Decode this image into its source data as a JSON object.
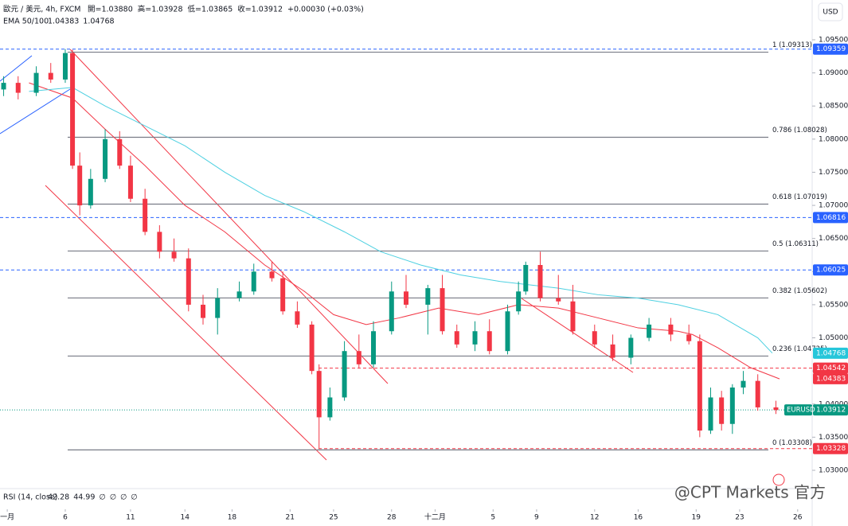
{
  "header": {
    "title": "歐元 / 美元, 4h, FXCM",
    "ohlc": [
      "開=1.03880",
      "高=1.03928",
      "低=1.03865",
      "收=1.03912",
      "+0.00030 (+0.03%)"
    ],
    "currency": "USD",
    "rsi": {
      "label": "RSI (14, close)",
      "values": [
        "42.28",
        "44.99",
        "∅",
        "∅",
        "∅",
        "∅"
      ]
    },
    "watermark": "@CPT Markets 官方"
  },
  "chart_data": {
    "type": "candlestick",
    "symbol": "EURUSD",
    "xlim": [
      0,
      224
    ],
    "xticks": [
      {
        "value": 2,
        "label": "一月"
      },
      {
        "value": 18,
        "label": "6"
      },
      {
        "value": 36,
        "label": "11"
      },
      {
        "value": 51,
        "label": "14"
      },
      {
        "value": 64,
        "label": "18"
      },
      {
        "value": 80,
        "label": "21"
      },
      {
        "value": 92,
        "label": "25"
      },
      {
        "value": 108,
        "label": "28"
      },
      {
        "value": 120,
        "label": "十二月"
      },
      {
        "value": 136,
        "label": "5"
      },
      {
        "value": 148,
        "label": "9"
      },
      {
        "value": 164,
        "label": "12"
      },
      {
        "value": 176,
        "label": "16"
      },
      {
        "value": 192,
        "label": "19"
      },
      {
        "value": 204,
        "label": "23"
      },
      {
        "value": 220,
        "label": "26"
      }
    ],
    "ylim": [
      1.03,
      1.095
    ],
    "yticks": [
      {
        "value": 1.095,
        "label": "1.09500"
      },
      {
        "value": 1.09,
        "label": "1.09000"
      },
      {
        "value": 1.085,
        "label": "1.08500"
      },
      {
        "value": 1.08,
        "label": "1.08000"
      },
      {
        "value": 1.075,
        "label": "1.07500"
      },
      {
        "value": 1.07,
        "label": "1.07000"
      },
      {
        "value": 1.065,
        "label": "1.06500"
      },
      {
        "value": 1.06,
        "label": "1.06000"
      },
      {
        "value": 1.055,
        "label": "1.05500"
      },
      {
        "value": 1.05,
        "label": "1.05000"
      },
      {
        "value": 1.045,
        "label": "1.04500"
      },
      {
        "value": 1.04,
        "label": "1.04000"
      },
      {
        "value": 1.035,
        "label": "1.03500"
      },
      {
        "value": 1.03,
        "label": "1.03000"
      }
    ],
    "up_color": "#089981",
    "down_color": "#f23645",
    "x": [
      1,
      5,
      10,
      14,
      18,
      20,
      22,
      25,
      29,
      33,
      36,
      40,
      44,
      48,
      52,
      56,
      60,
      66,
      70,
      75,
      78,
      82,
      86,
      88,
      91,
      95,
      99,
      103,
      108,
      112,
      118,
      122,
      126,
      131,
      135,
      140,
      143,
      145,
      149,
      154,
      158,
      164,
      169,
      174,
      179,
      185,
      190,
      193,
      196,
      199,
      202,
      205,
      209,
      214
    ],
    "open": [
      1.0875,
      1.0885,
      1.087,
      1.09,
      1.089,
      1.093,
      1.076,
      1.07,
      1.074,
      1.08,
      1.076,
      1.071,
      1.066,
      1.063,
      1.062,
      1.055,
      1.053,
      1.056,
      1.057,
      1.06,
      1.059,
      1.054,
      1.052,
      1.045,
      1.038,
      1.041,
      1.048,
      1.046,
      1.051,
      1.057,
      1.055,
      1.0575,
      1.051,
      1.049,
      1.051,
      1.048,
      1.054,
      1.057,
      1.061,
      1.056,
      1.0555,
      1.051,
      1.049,
      1.047,
      1.05,
      1.052,
      1.0505,
      1.0495,
      1.036,
      1.041,
      1.037,
      1.0425,
      1.0435,
      1.0395
    ],
    "high": [
      1.0895,
      1.0895,
      1.091,
      1.0915,
      1.0936,
      1.0935,
      1.078,
      1.0755,
      1.0815,
      1.0812,
      1.0775,
      1.0725,
      1.067,
      1.065,
      1.0635,
      1.0565,
      1.0575,
      1.0585,
      1.0612,
      1.0615,
      1.06,
      1.0555,
      1.0525,
      1.046,
      1.0425,
      1.0495,
      1.0505,
      1.0525,
      1.0585,
      1.0595,
      1.058,
      1.0595,
      1.052,
      1.0525,
      1.0528,
      1.055,
      1.0585,
      1.0615,
      1.063,
      1.0595,
      1.058,
      1.052,
      1.0505,
      1.0505,
      1.053,
      1.053,
      1.052,
      1.0505,
      1.0425,
      1.042,
      1.043,
      1.045,
      1.0445,
      1.0405
    ],
    "low": [
      1.0865,
      1.086,
      1.0865,
      1.0885,
      1.0885,
      1.0755,
      1.0685,
      1.0695,
      1.0735,
      1.0755,
      1.0705,
      1.0655,
      1.062,
      1.0615,
      1.054,
      1.052,
      1.0505,
      1.0555,
      1.0565,
      1.0585,
      1.0535,
      1.0515,
      1.0445,
      1.0333,
      1.0375,
      1.0405,
      1.0455,
      1.0455,
      1.0505,
      1.0545,
      1.0505,
      1.0505,
      1.0485,
      1.048,
      1.0475,
      1.0475,
      1.0535,
      1.0565,
      1.0555,
      1.055,
      1.0505,
      1.0485,
      1.0465,
      1.046,
      1.0495,
      1.0495,
      1.049,
      1.035,
      1.0355,
      1.036,
      1.0355,
      1.0415,
      1.039,
      1.0385
    ],
    "close": [
      1.0885,
      1.087,
      1.09,
      1.089,
      1.093,
      1.076,
      1.07,
      1.074,
      1.08,
      1.076,
      1.071,
      1.066,
      1.063,
      1.062,
      1.055,
      1.053,
      1.056,
      1.057,
      1.06,
      1.059,
      1.054,
      1.052,
      1.045,
      1.038,
      1.041,
      1.048,
      1.046,
      1.051,
      1.057,
      1.055,
      1.0575,
      1.051,
      1.049,
      1.051,
      1.048,
      1.054,
      1.057,
      1.061,
      1.056,
      1.0555,
      1.051,
      1.049,
      1.047,
      1.05,
      1.052,
      1.0505,
      1.0495,
      1.036,
      1.041,
      1.037,
      1.0425,
      1.0435,
      1.0395,
      1.0391
    ],
    "ema": {
      "label": "EMA 50/100",
      "series": [
        {
          "name": "EMA 50",
          "color": "#f23645",
          "last_label": "1.04383",
          "x": [
            8,
            20,
            29,
            40,
            51,
            62,
            73,
            84,
            92,
            101,
            110,
            121,
            132,
            143,
            154,
            165,
            176,
            187,
            191,
            198,
            207,
            215
          ],
          "values": [
            1.0885,
            1.0862,
            1.0815,
            1.076,
            1.07,
            1.066,
            1.061,
            1.057,
            1.0535,
            1.052,
            1.053,
            1.0545,
            1.0535,
            1.055,
            1.0545,
            1.053,
            1.0515,
            1.051,
            1.0505,
            1.0485,
            1.0455,
            1.0438
          ]
        },
        {
          "name": "EMA 100",
          "color": "#4dd0e1",
          "last_label": "1.04768",
          "x": [
            8,
            20,
            29,
            40,
            51,
            62,
            73,
            84,
            95,
            105,
            116,
            127,
            138,
            154,
            165,
            176,
            187,
            198,
            209,
            213
          ],
          "values": [
            1.0872,
            1.0878,
            1.085,
            1.082,
            1.079,
            1.075,
            1.0715,
            1.069,
            1.066,
            1.063,
            1.061,
            1.0595,
            1.0585,
            1.0575,
            1.0565,
            1.056,
            1.055,
            1.0535,
            1.05,
            1.0477
          ]
        }
      ]
    },
    "fib": [
      {
        "label": "1 (1.09313)",
        "value": 1.09313
      },
      {
        "label": "0.786 (1.08028)",
        "value": 1.08028
      },
      {
        "label": "0.618 (1.07019)",
        "value": 1.07019
      },
      {
        "label": "0.5 (1.06311)",
        "value": 1.06311
      },
      {
        "label": "0.382 (1.05602)",
        "value": 1.05602
      },
      {
        "label": "0.236 (1.04725)",
        "value": 1.04725
      },
      {
        "label": "0 (1.03308)",
        "value": 1.03308
      }
    ],
    "price_labels": [
      {
        "value": 1.09359,
        "label": "1.09359",
        "color": "#2962ff"
      },
      {
        "value": 1.06816,
        "label": "1.06816",
        "color": "#2962ff"
      },
      {
        "value": 1.06025,
        "label": "1.06025",
        "color": "#2962ff"
      },
      {
        "value": 1.04768,
        "label": "1.04768",
        "color": "#26c6da"
      },
      {
        "value": 1.04542,
        "label": "1.04542",
        "color": "#f23645"
      },
      {
        "value": 1.04383,
        "label": "1.04383",
        "color": "#f23645"
      },
      {
        "value": 1.03912,
        "label": "1.03912",
        "color": "#089981"
      },
      {
        "value": 1.03328,
        "label": "1.03328",
        "color": "#f23645"
      }
    ]
  }
}
